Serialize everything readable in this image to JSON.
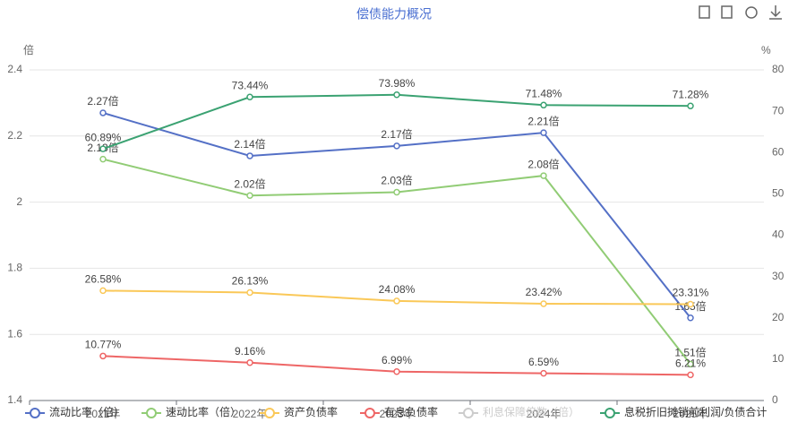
{
  "chart_data": {
    "type": "line",
    "title": "偿债能力概况",
    "y_label": "倍",
    "y2_label": "%",
    "categories": [
      "2021年",
      "2022年",
      "2023年",
      "2024年",
      "2025年"
    ],
    "ylim": [
      1.4,
      2.4
    ],
    "yticks": [
      1.4,
      1.6,
      1.8,
      2,
      2.2,
      2.4
    ],
    "y2lim": [
      0,
      80
    ],
    "y2ticks": [
      0,
      10,
      20,
      30,
      40,
      50,
      60,
      70,
      80
    ],
    "grid": true,
    "legend": "bottom",
    "series": [
      {
        "name": "流动比率（倍）",
        "color": "#5470c6",
        "values": [
          2.27,
          2.14,
          2.17,
          2.21,
          1.65
        ],
        "value_labels": [
          "2.27倍",
          "2.14倍",
          "2.17倍",
          "2.21倍",
          "1.65倍"
        ]
      },
      {
        "name": "速动比率（倍）",
        "color": "#91cc75",
        "values": [
          2.13,
          2.02,
          2.03,
          2.08,
          1.51
        ],
        "value_labels": [
          "2.13倍",
          "2.02倍",
          "2.03倍",
          "2.08倍",
          "1.51倍"
        ]
      },
      {
        "name": "资产负债率",
        "color": "#fac858",
        "axis": "y2",
        "values": [
          26.58,
          26.13,
          24.08,
          23.42,
          23.31
        ],
        "value_labels": [
          "26.58%",
          "26.13%",
          "24.08%",
          "23.42%",
          "23.31%"
        ]
      },
      {
        "name": "有息负债率",
        "color": "#ee6666",
        "axis": "y2",
        "values": [
          10.77,
          9.16,
          6.99,
          6.59,
          6.21
        ],
        "value_labels": [
          "10.77%",
          "9.16%",
          "6.99%",
          "6.59%",
          "6.21%"
        ]
      },
      {
        "name": "利息保障倍数（倍）",
        "color": "#cccccc",
        "visible": false,
        "values": [
          null,
          null,
          null,
          null,
          null
        ]
      },
      {
        "name": "息税折旧摊销前利润/负债合计",
        "color": "#3ba272",
        "axis": "y2",
        "values": [
          60.89,
          73.44,
          73.98,
          71.48,
          71.28
        ],
        "value_labels": [
          "60.89%",
          "73.44%",
          "73.98%",
          "71.48%",
          "71.28%"
        ]
      }
    ]
  }
}
